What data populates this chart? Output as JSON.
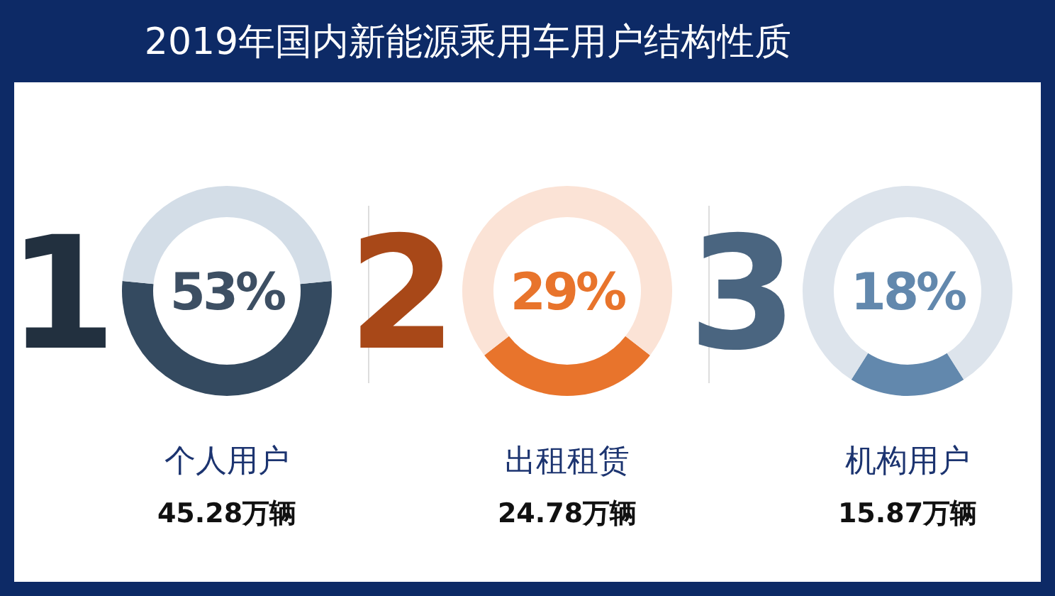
{
  "chart_data": [
    {
      "type": "donut",
      "title": "2019年国内新能源乘用车用户结构性质",
      "categories": [
        "个人用户",
        null
      ],
      "values": [
        53,
        47
      ],
      "colors": [
        "#344a60",
        "#d3dde7"
      ],
      "value_labels": [
        "53%",
        null
      ],
      "annotations": [
        "1",
        "45.28万辆"
      ]
    },
    {
      "type": "donut",
      "categories": [
        "出租租赁",
        null
      ],
      "values": [
        29,
        71
      ],
      "colors": [
        "#e8742c",
        "#fbe3d6"
      ],
      "value_labels": [
        "29%",
        null
      ],
      "annotations": [
        "2",
        "24.78万辆"
      ]
    },
    {
      "type": "donut",
      "categories": [
        "机构用户",
        null
      ],
      "values": [
        18,
        82
      ],
      "colors": [
        "#6288ad",
        "#dde4ec"
      ],
      "value_labels": [
        "18%",
        null
      ],
      "annotations": [
        "3",
        "15.87万辆"
      ]
    }
  ]
}
